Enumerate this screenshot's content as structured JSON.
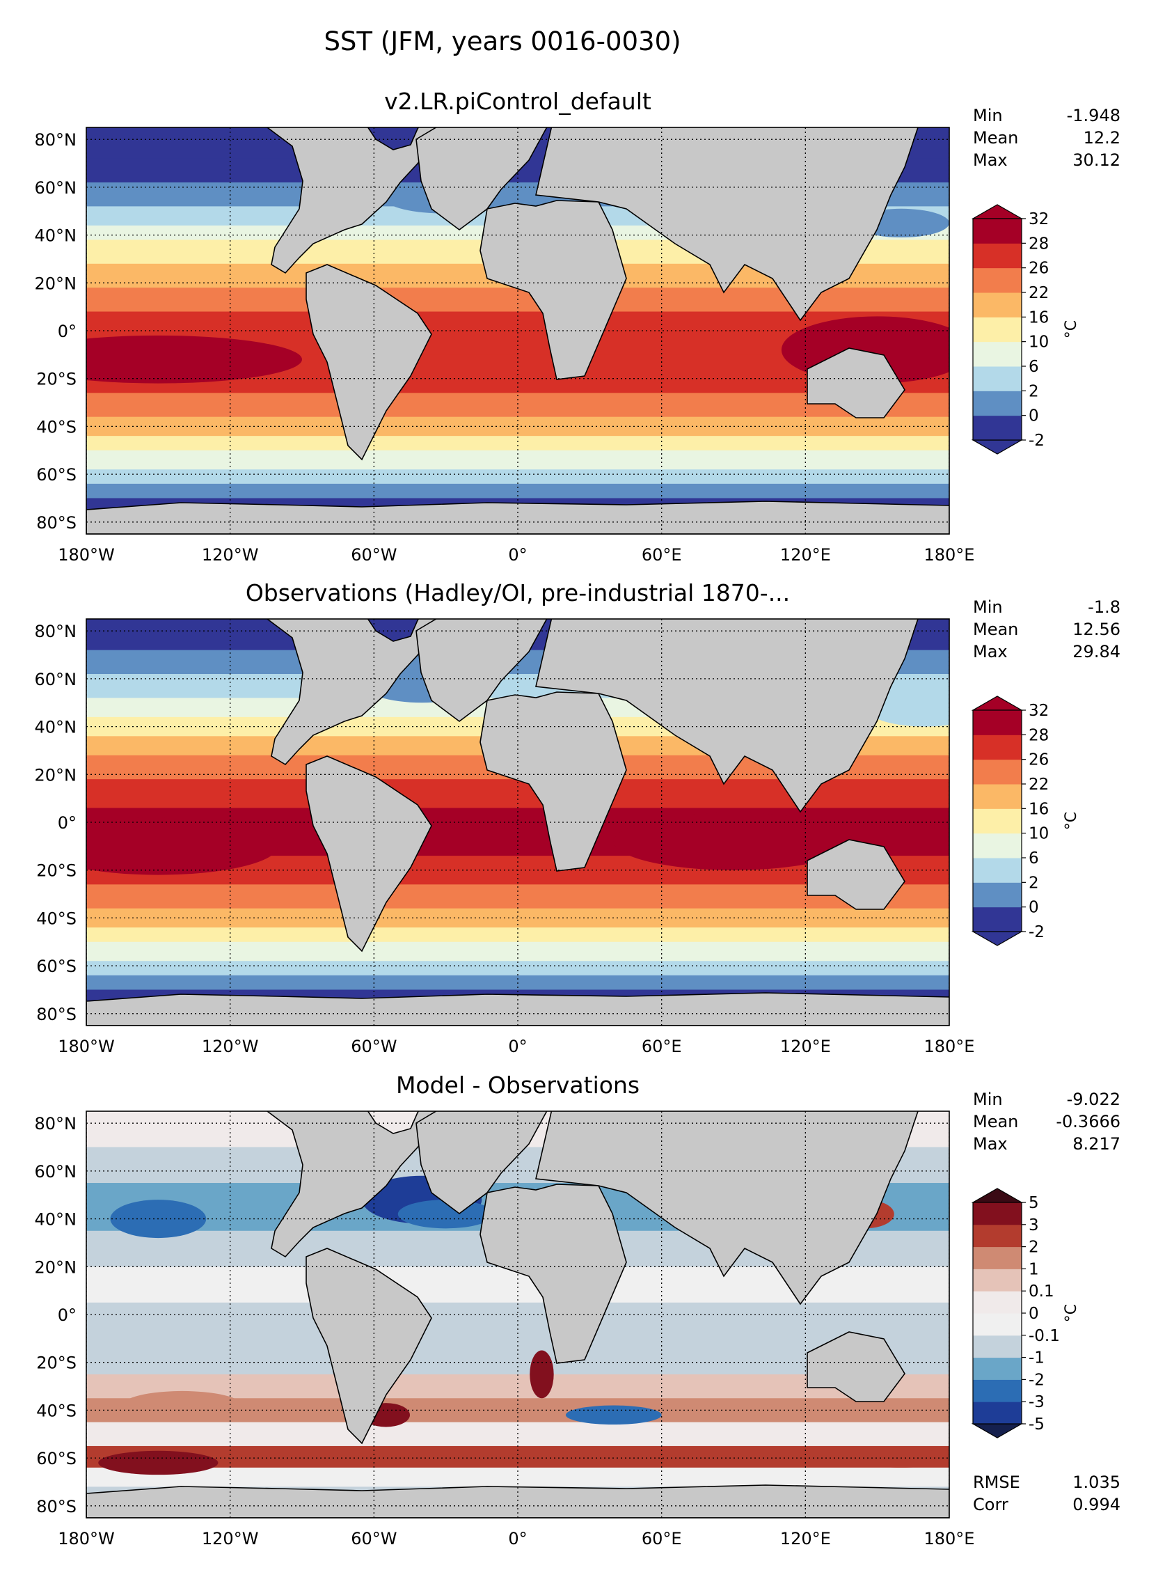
{
  "figure": {
    "title": "SST (JFM, years 0016-0030)"
  },
  "axes": {
    "lat_ticks": [
      "80°N",
      "60°N",
      "40°N",
      "20°N",
      "0°",
      "20°S",
      "40°S",
      "60°S",
      "80°S"
    ],
    "lon_ticks": [
      "180°W",
      "120°W",
      "60°W",
      "0°",
      "60°E",
      "120°E",
      "180°E"
    ]
  },
  "panels": [
    {
      "title": "v2.LR.piControl_default",
      "stats": [
        {
          "label": "Min",
          "value": "-1.948"
        },
        {
          "label": "Mean",
          "value": "12.2"
        },
        {
          "label": "Max",
          "value": "30.12"
        }
      ],
      "colorbar": {
        "unit": "°C",
        "levels": [
          "-2",
          "0",
          "2",
          "6",
          "10",
          "16",
          "22",
          "26",
          "28",
          "32"
        ],
        "colors": [
          "#313695",
          "#5f8fc3",
          "#b3d9e9",
          "#e9f5e2",
          "#fdefa8",
          "#fbb866",
          "#f27d4c",
          "#d73027",
          "#a50026"
        ],
        "under_color": "#313695",
        "over_color": "#a50026"
      },
      "map_kind": "model"
    },
    {
      "title": "Observations (Hadley/OI, pre-industrial 1870-...",
      "stats": [
        {
          "label": "Min",
          "value": "-1.8"
        },
        {
          "label": "Mean",
          "value": "12.56"
        },
        {
          "label": "Max",
          "value": "29.84"
        }
      ],
      "colorbar": {
        "unit": "°C",
        "levels": [
          "-2",
          "0",
          "2",
          "6",
          "10",
          "16",
          "22",
          "26",
          "28",
          "32"
        ],
        "colors": [
          "#313695",
          "#5f8fc3",
          "#b3d9e9",
          "#e9f5e2",
          "#fdefa8",
          "#fbb866",
          "#f27d4c",
          "#d73027",
          "#a50026"
        ],
        "under_color": "#313695",
        "over_color": "#a50026"
      },
      "map_kind": "obs"
    },
    {
      "title": "Model - Observations",
      "stats": [
        {
          "label": "Min",
          "value": "-9.022"
        },
        {
          "label": "Mean",
          "value": "-0.3666"
        },
        {
          "label": "Max",
          "value": "8.217"
        }
      ],
      "extra_stats": [
        {
          "label": "RMSE",
          "value": "1.035"
        },
        {
          "label": "Corr",
          "value": "0.994"
        }
      ],
      "colorbar": {
        "unit": "°C",
        "levels": [
          "-5",
          "-3",
          "-2",
          "-1",
          "-0.1",
          "0",
          "0.1",
          "1",
          "2",
          "3",
          "5"
        ],
        "colors": [
          "#1e3d97",
          "#2c6db4",
          "#6aa6c8",
          "#c4d2dc",
          "#f0f0f0",
          "#f0eaea",
          "#e5c3b8",
          "#cf8a73",
          "#b33c2e",
          "#82101e"
        ],
        "under_color": "#15204e",
        "over_color": "#3a0a14"
      },
      "map_kind": "diff"
    }
  ]
}
